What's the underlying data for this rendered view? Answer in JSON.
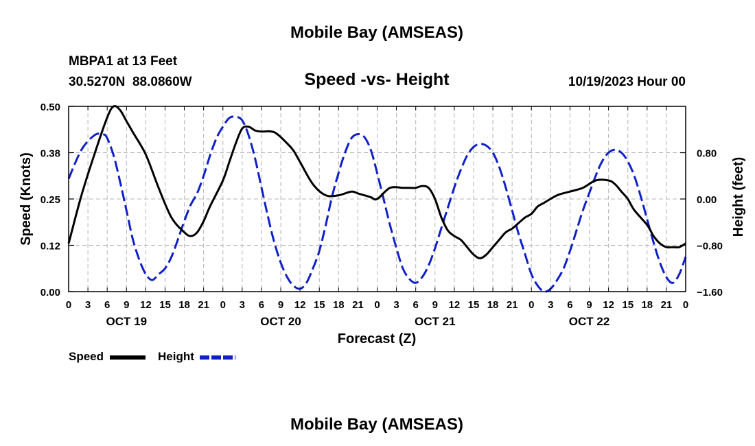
{
  "chart_data": {
    "type": "line",
    "title": "Mobile Bay (AMSEAS)",
    "subtitle": "Speed -vs- Height",
    "station": "MBPA1 at 13 Feet",
    "coordinates": "30.5270N  88.0860W",
    "issued": "10/19/2023 Hour 00",
    "footer_title": "Mobile Bay (AMSEAS)",
    "xlabel": "Forecast (Z)",
    "ylabel": "Speed (Knots)",
    "y2label": "Height (feet)",
    "x_unit": "forecast hour",
    "xlim": [
      0,
      96
    ],
    "ylim": [
      0,
      0.5
    ],
    "y2lim": [
      -1.6,
      1.6
    ],
    "grid": true,
    "legend_position": "bottom-left",
    "x_tick_labels": [
      "0",
      "3",
      "6",
      "9",
      "12",
      "15",
      "18",
      "21",
      "0",
      "3",
      "6",
      "9",
      "12",
      "15",
      "18",
      "21",
      "0",
      "3",
      "6",
      "9",
      "12",
      "15",
      "18",
      "21",
      "0",
      "3",
      "6",
      "9",
      "12",
      "15",
      "18",
      "21",
      "0"
    ],
    "day_labels": [
      {
        "label": "OCT 19",
        "hour": 9
      },
      {
        "label": "OCT 20",
        "hour": 33
      },
      {
        "label": "OCT 21",
        "hour": 57
      },
      {
        "label": "OCT 22",
        "hour": 81
      }
    ],
    "y_ticks": [
      "0.00",
      "0.12",
      "0.25",
      "0.38",
      "0.50"
    ],
    "y2_ticks": [
      "-1.60",
      "-0.80",
      "0.00",
      "0.80"
    ],
    "series": [
      {
        "name": "Speed",
        "axis": "left",
        "color": "#000000",
        "dash": "solid",
        "x": [
          0,
          2,
          4,
          6,
          7,
          8,
          9,
          10,
          12,
          14,
          16,
          18,
          19,
          20,
          21,
          22,
          24,
          25,
          26,
          27,
          28,
          29,
          30,
          32,
          34,
          35,
          36,
          38,
          40,
          42,
          44,
          45,
          46,
          47,
          48,
          50,
          52,
          53,
          54,
          55,
          56,
          57,
          58,
          59,
          60,
          61,
          62,
          63,
          64,
          65,
          66,
          67,
          68,
          69,
          70,
          71,
          72,
          73,
          74,
          76,
          78,
          80,
          82,
          84,
          85,
          86,
          87,
          88,
          90,
          91,
          92,
          93,
          94,
          95,
          96
        ],
        "values": [
          0.13,
          0.26,
          0.37,
          0.47,
          0.5,
          0.49,
          0.46,
          0.43,
          0.37,
          0.28,
          0.2,
          0.16,
          0.15,
          0.16,
          0.19,
          0.23,
          0.3,
          0.35,
          0.4,
          0.44,
          0.445,
          0.435,
          0.432,
          0.43,
          0.4,
          0.38,
          0.35,
          0.29,
          0.26,
          0.26,
          0.27,
          0.265,
          0.26,
          0.255,
          0.25,
          0.28,
          0.28,
          0.28,
          0.28,
          0.285,
          0.28,
          0.25,
          0.2,
          0.165,
          0.15,
          0.14,
          0.12,
          0.1,
          0.09,
          0.1,
          0.12,
          0.14,
          0.16,
          0.17,
          0.185,
          0.2,
          0.21,
          0.23,
          0.24,
          0.26,
          0.27,
          0.28,
          0.3,
          0.3,
          0.29,
          0.27,
          0.25,
          0.22,
          0.18,
          0.15,
          0.13,
          0.12,
          0.12,
          0.12,
          0.13
        ]
      },
      {
        "name": "Height",
        "axis": "right",
        "color": "#1020c8",
        "dash": "dashed",
        "x": [
          0,
          2,
          4,
          5.3,
          6,
          7,
          8,
          9,
          10,
          11,
          12,
          13,
          14,
          15,
          16,
          17,
          18,
          19,
          20,
          21,
          22,
          23,
          24,
          25,
          26,
          27,
          28,
          29,
          30,
          31,
          32,
          33,
          34,
          35,
          36,
          37,
          38,
          39,
          40,
          41,
          42,
          43,
          44,
          45,
          46,
          47,
          48,
          49,
          50,
          51,
          52,
          53,
          54,
          55,
          56,
          57,
          58,
          59,
          60,
          61,
          62,
          63,
          64,
          65,
          66,
          67,
          68,
          69,
          70,
          71,
          72,
          73,
          74,
          75,
          76,
          77,
          78,
          79,
          80,
          81,
          82,
          83,
          84,
          85,
          86,
          87,
          88,
          89,
          90,
          91,
          92,
          93,
          94,
          95,
          96
        ],
        "values": [
          0.35,
          0.85,
          1.1,
          1.12,
          1.05,
          0.75,
          0.3,
          -0.2,
          -0.7,
          -1.05,
          -1.3,
          -1.4,
          -1.3,
          -1.2,
          -1.0,
          -0.7,
          -0.38,
          -0.1,
          0.1,
          0.4,
          0.75,
          1.05,
          1.25,
          1.4,
          1.42,
          1.36,
          1.1,
          0.7,
          0.2,
          -0.3,
          -0.75,
          -1.1,
          -1.35,
          -1.5,
          -1.55,
          -1.45,
          -1.2,
          -0.9,
          -0.45,
          0.05,
          0.45,
          0.8,
          1.05,
          1.12,
          1.07,
          0.85,
          0.45,
          0.0,
          -0.45,
          -0.85,
          -1.2,
          -1.38,
          -1.45,
          -1.35,
          -1.15,
          -0.85,
          -0.5,
          -0.15,
          0.2,
          0.5,
          0.75,
          0.9,
          0.95,
          0.92,
          0.8,
          0.55,
          0.2,
          -0.2,
          -0.6,
          -0.95,
          -1.3,
          -1.5,
          -1.6,
          -1.55,
          -1.4,
          -1.2,
          -0.9,
          -0.55,
          -0.2,
          0.1,
          0.4,
          0.65,
          0.8,
          0.85,
          0.8,
          0.65,
          0.4,
          0.05,
          -0.35,
          -0.75,
          -1.1,
          -1.35,
          -1.45,
          -1.3,
          -1.0
        ]
      }
    ]
  }
}
